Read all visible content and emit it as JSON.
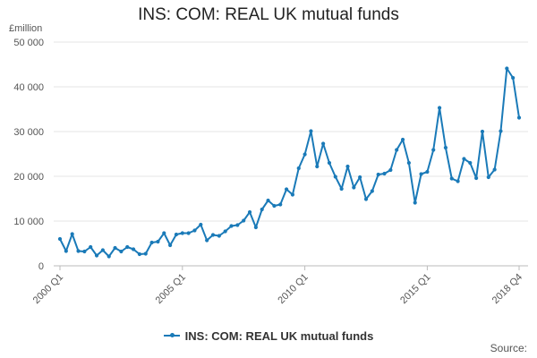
{
  "chart_data": {
    "type": "line",
    "title": "INS: COM: REAL UK mutual funds",
    "ylabel": "£million",
    "xlabel": "",
    "ylim": [
      0,
      50000
    ],
    "yticks": [
      0,
      10000,
      20000,
      30000,
      40000,
      50000
    ],
    "ytick_labels": [
      "0",
      "10 000",
      "20 000",
      "30 000",
      "40 000",
      "50 000"
    ],
    "xticks": [
      {
        "label": "2000 Q1",
        "index": 0
      },
      {
        "label": "2005 Q1",
        "index": 20
      },
      {
        "label": "2010 Q1",
        "index": 40
      },
      {
        "label": "2015 Q1",
        "index": 60
      },
      {
        "label": "2018 Q4",
        "index": 75
      }
    ],
    "grid": true,
    "legend_placement": "bottom",
    "color": "#1a7ab8",
    "series": [
      {
        "name": "INS: COM: REAL UK mutual funds",
        "values": [
          6000,
          3300,
          7100,
          3300,
          3200,
          4200,
          2300,
          3500,
          2100,
          4000,
          3200,
          4200,
          3700,
          2600,
          2700,
          5200,
          5400,
          7300,
          4600,
          7000,
          7300,
          7300,
          7900,
          9200,
          5700,
          6900,
          6700,
          7700,
          8900,
          9100,
          10100,
          12000,
          8600,
          12600,
          14600,
          13400,
          13700,
          17100,
          15900,
          21800,
          24900,
          30100,
          22200,
          27300,
          23000,
          19900,
          17200,
          22200,
          17500,
          19800,
          14900,
          16700,
          20400,
          20600,
          21400,
          25900,
          28200,
          23000,
          14100,
          20500,
          21000,
          25900,
          35300,
          26400,
          19500,
          18900,
          23900,
          23000,
          19600,
          30000,
          19800,
          21500,
          30100,
          44100,
          42000,
          33100
        ]
      }
    ]
  },
  "legend": {
    "label": "INS: COM: REAL UK mutual funds"
  },
  "source": {
    "label": "Source:"
  }
}
